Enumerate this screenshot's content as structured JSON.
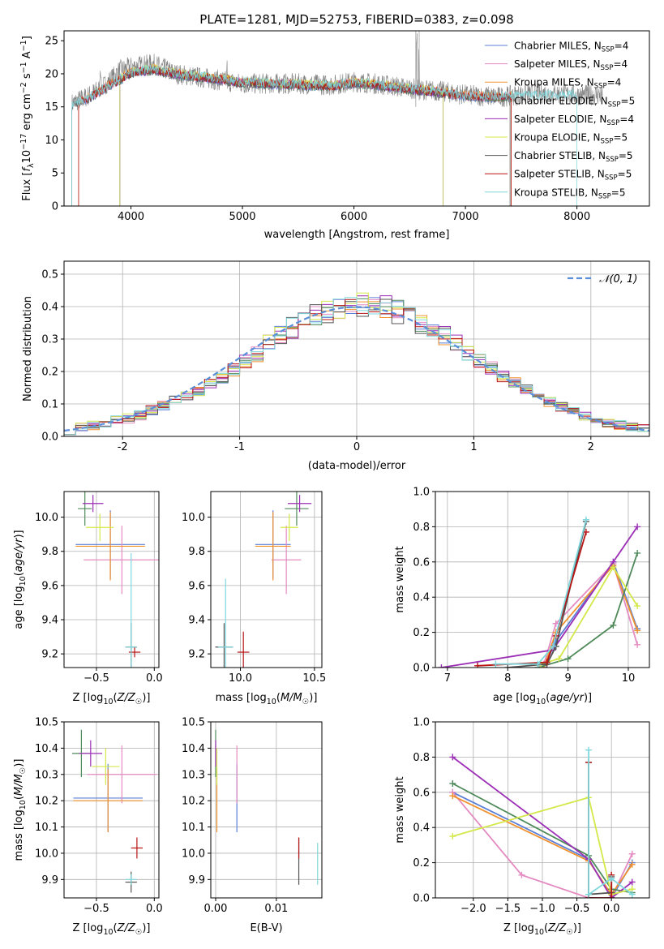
{
  "figure": {
    "title": "PLATE=1281, MJD=52753, FIBERID=0383, z=0.098"
  },
  "colors": {
    "Chabrier MILES": "#5b7fd6",
    "Salpeter MILES": "#e48bc2",
    "Kroupa MILES": "#f0922f",
    "Chabrier ELODIE": "#4f8a5a",
    "Salpeter ELODIE": "#9b2fb5",
    "Kroupa ELODIE": "#d4e84a",
    "Chabrier STELIB": "#555555",
    "Salpeter STELIB": "#b81414",
    "Kroupa STELIB": "#7fd8dd"
  },
  "chart_data": [
    {
      "id": "spectrum",
      "type": "line",
      "xlabel": "wavelength [Angstrom, rest frame]",
      "ylabel": "Flux [f_λ 10^-17 erg cm^-2 s^-1 A^-1]",
      "xlim": [
        3400,
        8650
      ],
      "ylim": [
        0,
        26.5
      ],
      "xticks": [
        4000,
        5000,
        6000,
        7000,
        8000
      ],
      "yticks": [
        0,
        5,
        10,
        15,
        20,
        25
      ],
      "legend_position": "top-right",
      "legend": [
        {
          "name": "Chabrier MILES",
          "nssp": "4"
        },
        {
          "name": "Salpeter MILES",
          "nssp": "4"
        },
        {
          "name": "Kroupa MILES",
          "nssp": "4"
        },
        {
          "name": "Chabrier ELODIE",
          "nssp": "5"
        },
        {
          "name": "Salpeter ELODIE",
          "nssp": "4"
        },
        {
          "name": "Kroupa ELODIE",
          "nssp": "5"
        },
        {
          "name": "Chabrier STELIB",
          "nssp": "5"
        },
        {
          "name": "Salpeter STELIB",
          "nssp": "5"
        },
        {
          "name": "Kroupa STELIB",
          "nssp": "5"
        }
      ],
      "data_continuum": [
        [
          3470,
          15.5
        ],
        [
          3600,
          16.5
        ],
        [
          3750,
          18.0
        ],
        [
          3900,
          20.5
        ],
        [
          4000,
          21.0
        ],
        [
          4200,
          21.5
        ],
        [
          4400,
          20.0
        ],
        [
          4600,
          19.5
        ],
        [
          4800,
          19.0
        ],
        [
          5000,
          18.5
        ],
        [
          5200,
          18.5
        ],
        [
          5500,
          18.5
        ],
        [
          5800,
          18.3
        ],
        [
          6000,
          18.8
        ],
        [
          6200,
          18.5
        ],
        [
          6500,
          17.8
        ],
        [
          6800,
          17.3
        ],
        [
          7000,
          16.8
        ],
        [
          7300,
          16.5
        ],
        [
          7600,
          17.0
        ],
        [
          7800,
          17.0
        ],
        [
          8000,
          16.8
        ],
        [
          8200,
          16.8
        ]
      ],
      "model_continuum": [
        [
          3470,
          15.0
        ],
        [
          3600,
          16.0
        ],
        [
          3750,
          17.5
        ],
        [
          3900,
          19.0
        ],
        [
          4000,
          20.0
        ],
        [
          4200,
          20.5
        ],
        [
          4400,
          19.8
        ],
        [
          4600,
          19.4
        ],
        [
          4800,
          19.0
        ],
        [
          5000,
          18.5
        ],
        [
          5200,
          18.4
        ],
        [
          5500,
          18.2
        ],
        [
          5800,
          18.0
        ],
        [
          6000,
          18.5
        ],
        [
          6200,
          18.2
        ],
        [
          6500,
          17.5
        ],
        [
          6800,
          17.0
        ],
        [
          7000,
          16.5
        ],
        [
          7300,
          16.3
        ],
        [
          7400,
          16.5
        ]
      ],
      "model_ranges": [
        {
          "series": "Chabrier MILES",
          "x": [
            3530,
            7410
          ]
        },
        {
          "series": "Salpeter MILES",
          "x": [
            3530,
            7410
          ]
        },
        {
          "series": "Kroupa MILES",
          "x": [
            3530,
            7410
          ]
        },
        {
          "series": "Chabrier ELODIE",
          "x": [
            3900,
            6800
          ]
        },
        {
          "series": "Salpeter ELODIE",
          "x": [
            3900,
            6800
          ]
        },
        {
          "series": "Kroupa ELODIE",
          "x": [
            3900,
            6800
          ]
        },
        {
          "series": "Chabrier STELIB",
          "x": [
            3470,
            7400
          ]
        },
        {
          "series": "Salpeter STELIB",
          "x": [
            3530,
            7410
          ]
        },
        {
          "series": "Kroupa STELIB",
          "x": [
            3470,
            8000
          ]
        }
      ]
    },
    {
      "id": "residuals",
      "type": "line",
      "xlabel": "(data-model)/error",
      "ylabel": "Normed distribution",
      "xlim": [
        -2.5,
        2.5
      ],
      "ylim": [
        0,
        0.54
      ],
      "xticks": [
        -2,
        -1,
        0,
        1,
        2
      ],
      "yticks": [
        0.0,
        0.1,
        0.2,
        0.3,
        0.4,
        0.5
      ],
      "legend_position": "top-right",
      "gaussian_label": "𝒩(0, 1)",
      "gaussian_color": "#5b8fd9",
      "bin_edges_start": -2.5,
      "bin_width": 0.1,
      "base_hist": [
        0.02,
        0.03,
        0.035,
        0.04,
        0.05,
        0.055,
        0.065,
        0.08,
        0.095,
        0.11,
        0.125,
        0.14,
        0.16,
        0.18,
        0.205,
        0.23,
        0.255,
        0.285,
        0.315,
        0.335,
        0.35,
        0.37,
        0.385,
        0.395,
        0.4,
        0.41,
        0.4,
        0.395,
        0.385,
        0.37,
        0.35,
        0.335,
        0.31,
        0.29,
        0.26,
        0.235,
        0.21,
        0.185,
        0.165,
        0.145,
        0.125,
        0.105,
        0.09,
        0.075,
        0.06,
        0.05,
        0.04,
        0.035,
        0.03,
        0.025
      ]
    },
    {
      "id": "age_vs_Z",
      "type": "scatter",
      "xlabel": "Z [log10(Z/Z☉)]",
      "ylabel": "age [log10(age/yr)]",
      "xlim": [
        -0.78,
        0.04
      ],
      "ylim": [
        9.12,
        10.15
      ],
      "xticks": [
        -0.5,
        0.0
      ],
      "yticks": [
        9.2,
        9.4,
        9.6,
        9.8,
        10.0
      ],
      "points": [
        {
          "series": "Chabrier MILES",
          "x": -0.38,
          "y": 9.84,
          "xerr": 0.3,
          "yerr": 0.2
        },
        {
          "series": "Salpeter MILES",
          "x": -0.28,
          "y": 9.75,
          "xerr": 0.33,
          "yerr": 0.2
        },
        {
          "series": "Kroupa MILES",
          "x": -0.38,
          "y": 9.83,
          "xerr": 0.3,
          "yerr": 0.2
        },
        {
          "series": "Chabrier ELODIE",
          "x": -0.6,
          "y": 10.05,
          "xerr": 0.06,
          "yerr": 0.1
        },
        {
          "series": "Salpeter ELODIE",
          "x": -0.53,
          "y": 10.08,
          "xerr": 0.09,
          "yerr": 0.05
        },
        {
          "series": "Kroupa ELODIE",
          "x": -0.47,
          "y": 9.94,
          "xerr": 0.12,
          "yerr": 0.08
        },
        {
          "series": "Chabrier STELIB",
          "x": -0.2,
          "y": 9.24,
          "xerr": 0.05,
          "yerr": 0.14
        },
        {
          "series": "Salpeter STELIB",
          "x": -0.17,
          "y": 9.21,
          "xerr": 0.05,
          "yerr": 0.03
        },
        {
          "series": "Kroupa STELIB",
          "x": -0.2,
          "y": 9.24,
          "xerr": 0.05,
          "yerr": 0.55
        }
      ]
    },
    {
      "id": "age_vs_mass",
      "type": "scatter",
      "xlabel": "mass [log10(M/M☉)]",
      "ylabel": "",
      "xlim": [
        9.8,
        10.55
      ],
      "ylim": [
        9.12,
        10.15
      ],
      "xticks": [
        10.0,
        10.5
      ],
      "yticks": [
        9.2,
        9.4,
        9.6,
        9.8,
        10.0
      ],
      "points": [
        {
          "series": "Chabrier MILES",
          "x": 10.22,
          "y": 9.84,
          "xerr": 0.12,
          "yerr": 0.2
        },
        {
          "series": "Salpeter MILES",
          "x": 10.31,
          "y": 9.75,
          "xerr": 0.1,
          "yerr": 0.2
        },
        {
          "series": "Kroupa MILES",
          "x": 10.22,
          "y": 9.83,
          "xerr": 0.12,
          "yerr": 0.2
        },
        {
          "series": "Chabrier ELODIE",
          "x": 10.38,
          "y": 10.05,
          "xerr": 0.08,
          "yerr": 0.1
        },
        {
          "series": "Salpeter ELODIE",
          "x": 10.4,
          "y": 10.08,
          "xerr": 0.08,
          "yerr": 0.05
        },
        {
          "series": "Kroupa ELODIE",
          "x": 10.33,
          "y": 9.94,
          "xerr": 0.06,
          "yerr": 0.08
        },
        {
          "series": "Chabrier STELIB",
          "x": 9.89,
          "y": 9.24,
          "xerr": 0.06,
          "yerr": 0.14
        },
        {
          "series": "Salpeter STELIB",
          "x": 10.02,
          "y": 9.21,
          "xerr": 0.04,
          "yerr": 0.12
        },
        {
          "series": "Kroupa STELIB",
          "x": 9.9,
          "y": 9.24,
          "xerr": 0.05,
          "yerr": 0.4
        }
      ]
    },
    {
      "id": "massweight_vs_age",
      "type": "line",
      "xlabel": "age  [log10(age/yr)]",
      "ylabel": "mass weight",
      "xlim": [
        6.8,
        10.35
      ],
      "ylim": [
        0,
        1.0
      ],
      "xticks": [
        7,
        8,
        9,
        10
      ],
      "yticks": [
        0.0,
        0.2,
        0.4,
        0.6,
        0.8,
        1.0
      ],
      "series": [
        {
          "name": "Chabrier MILES",
          "x": [
            8.6,
            8.8,
            9.75,
            10.15
          ],
          "y": [
            0.0,
            0.15,
            0.6,
            0.22
          ]
        },
        {
          "name": "Salpeter MILES",
          "x": [
            8.6,
            8.8,
            9.75,
            10.15
          ],
          "y": [
            0.02,
            0.25,
            0.59,
            0.13
          ]
        },
        {
          "name": "Kroupa MILES",
          "x": [
            8.6,
            8.8,
            9.75,
            10.15
          ],
          "y": [
            0.0,
            0.2,
            0.58,
            0.21
          ]
        },
        {
          "name": "Chabrier ELODIE",
          "x": [
            8.5,
            9.0,
            9.75,
            10.15
          ],
          "y": [
            0.0,
            0.05,
            0.24,
            0.65
          ]
        },
        {
          "name": "Salpeter ELODIE",
          "x": [
            6.9,
            8.75,
            9.75,
            10.15
          ],
          "y": [
            0.0,
            0.1,
            0.6,
            0.8
          ]
        },
        {
          "name": "Kroupa ELODIE",
          "x": [
            8.55,
            8.85,
            9.75,
            10.15
          ],
          "y": [
            0.02,
            0.05,
            0.57,
            0.35
          ]
        },
        {
          "name": "Chabrier STELIB",
          "x": [
            8.0,
            8.65,
            8.8,
            9.3
          ],
          "y": [
            0.0,
            0.02,
            0.12,
            0.83
          ]
        },
        {
          "name": "Salpeter STELIB",
          "x": [
            7.5,
            8.65,
            8.8,
            9.3
          ],
          "y": [
            0.01,
            0.03,
            0.18,
            0.77
          ]
        },
        {
          "name": "Kroupa STELIB",
          "x": [
            7.8,
            8.5,
            8.75,
            9.3
          ],
          "y": [
            0.02,
            0.02,
            0.12,
            0.84
          ]
        }
      ]
    },
    {
      "id": "mass_vs_Z",
      "type": "scatter",
      "xlabel": "Z [log10(Z/Z☉)]",
      "ylabel": "mass [log10(M/M☉)]",
      "xlim": [
        -0.78,
        0.04
      ],
      "ylim": [
        9.83,
        10.5
      ],
      "xticks": [
        -0.5,
        0.0
      ],
      "yticks": [
        9.9,
        10.0,
        10.1,
        10.2,
        10.3,
        10.4,
        10.5
      ],
      "points": [
        {
          "series": "Chabrier MILES",
          "x": -0.4,
          "y": 10.21,
          "xerr": 0.3,
          "yerr": 0.13
        },
        {
          "series": "Salpeter MILES",
          "x": -0.28,
          "y": 10.3,
          "xerr": 0.3,
          "yerr": 0.11
        },
        {
          "series": "Kroupa MILES",
          "x": -0.4,
          "y": 10.2,
          "xerr": 0.3,
          "yerr": 0.12
        },
        {
          "series": "Chabrier ELODIE",
          "x": -0.63,
          "y": 10.38,
          "xerr": 0.08,
          "yerr": 0.09
        },
        {
          "series": "Salpeter ELODIE",
          "x": -0.55,
          "y": 10.38,
          "xerr": 0.1,
          "yerr": 0.05
        },
        {
          "series": "Kroupa ELODIE",
          "x": -0.42,
          "y": 10.33,
          "xerr": 0.12,
          "yerr": 0.07
        },
        {
          "series": "Chabrier STELIB",
          "x": -0.2,
          "y": 9.89,
          "xerr": 0.05,
          "yerr": 0.04
        },
        {
          "series": "Salpeter STELIB",
          "x": -0.15,
          "y": 10.02,
          "xerr": 0.05,
          "yerr": 0.04
        },
        {
          "series": "Kroupa STELIB",
          "x": -0.2,
          "y": 9.9,
          "xerr": 0.05,
          "yerr": 0.02
        }
      ]
    },
    {
      "id": "mass_vs_EBV",
      "type": "scatter",
      "xlabel": "E(B-V)",
      "ylabel": "",
      "xlim": [
        -0.0008,
        0.0175
      ],
      "ylim": [
        9.83,
        10.5
      ],
      "xticks": [
        0.0,
        0.01
      ],
      "yticks": [
        9.9,
        10.0,
        10.1,
        10.2,
        10.3,
        10.4,
        10.5
      ],
      "points": [
        {
          "series": "Chabrier MILES",
          "x": 0.0035,
          "y": 10.21,
          "xerr": 0,
          "yerr": 0.13
        },
        {
          "series": "Salpeter MILES",
          "x": 0.0035,
          "y": 10.3,
          "xerr": 0,
          "yerr": 0.11
        },
        {
          "series": "Kroupa MILES",
          "x": 0.0002,
          "y": 10.2,
          "xerr": 0,
          "yerr": 0.12
        },
        {
          "series": "Chabrier ELODIE",
          "x": 0.0,
          "y": 10.38,
          "xerr": 0,
          "yerr": 0.09
        },
        {
          "series": "Salpeter ELODIE",
          "x": 0.0,
          "y": 10.38,
          "xerr": 0,
          "yerr": 0.05
        },
        {
          "series": "Kroupa ELODIE",
          "x": 0.0002,
          "y": 10.33,
          "xerr": 0,
          "yerr": 0.07
        },
        {
          "series": "Chabrier STELIB",
          "x": 0.0137,
          "y": 9.97,
          "xerr": 0,
          "yerr": 0.09
        },
        {
          "series": "Salpeter STELIB",
          "x": 0.0137,
          "y": 10.02,
          "xerr": 0,
          "yerr": 0.04
        },
        {
          "series": "Kroupa STELIB",
          "x": 0.0168,
          "y": 9.96,
          "xerr": 0,
          "yerr": 0.08
        }
      ]
    },
    {
      "id": "massweight_vs_Z",
      "type": "line",
      "xlabel": "Z [log10(Z/Z☉)]",
      "ylabel": "mass weight",
      "xlim": [
        -2.55,
        0.55
      ],
      "ylim": [
        0,
        1.0
      ],
      "xticks": [
        -2.0,
        -1.5,
        -1.0,
        -0.5,
        0.0
      ],
      "yticks": [
        0.0,
        0.2,
        0.4,
        0.6,
        0.8,
        1.0
      ],
      "series": [
        {
          "name": "Chabrier MILES",
          "x": [
            -2.3,
            -0.33,
            0.0,
            0.3
          ],
          "y": [
            0.6,
            0.22,
            0.0,
            0.2
          ]
        },
        {
          "name": "Salpeter MILES",
          "x": [
            -2.3,
            -1.3,
            -0.33,
            0.0,
            0.3
          ],
          "y": [
            0.6,
            0.13,
            0.0,
            0.0,
            0.25
          ]
        },
        {
          "name": "Kroupa MILES",
          "x": [
            -2.3,
            -0.33,
            0.0,
            0.3
          ],
          "y": [
            0.58,
            0.21,
            0.02,
            0.19
          ]
        },
        {
          "name": "Chabrier ELODIE",
          "x": [
            -2.3,
            -0.33,
            0.0,
            0.3
          ],
          "y": [
            0.65,
            0.24,
            0.05,
            0.03
          ]
        },
        {
          "name": "Salpeter ELODIE",
          "x": [
            -2.3,
            -0.33,
            0.0,
            0.3
          ],
          "y": [
            0.8,
            0.22,
            0.0,
            0.09
          ]
        },
        {
          "name": "Kroupa ELODIE",
          "x": [
            -2.3,
            -0.33,
            0.0,
            0.3
          ],
          "y": [
            0.35,
            0.57,
            0.02,
            0.05
          ]
        },
        {
          "name": "Chabrier STELIB",
          "x": [
            -0.33,
            -0.33,
            0.0,
            0.0
          ],
          "y": [
            0.77,
            0.02,
            0.03,
            0.12
          ]
        },
        {
          "name": "Salpeter STELIB",
          "x": [
            -0.33,
            -0.33,
            0.0,
            0.0
          ],
          "y": [
            0.77,
            0.0,
            0.0,
            0.13
          ]
        },
        {
          "name": "Kroupa STELIB",
          "x": [
            -0.33,
            -0.33,
            0.0,
            0.3
          ],
          "y": [
            0.84,
            0.02,
            0.11,
            0.02
          ]
        }
      ]
    }
  ]
}
